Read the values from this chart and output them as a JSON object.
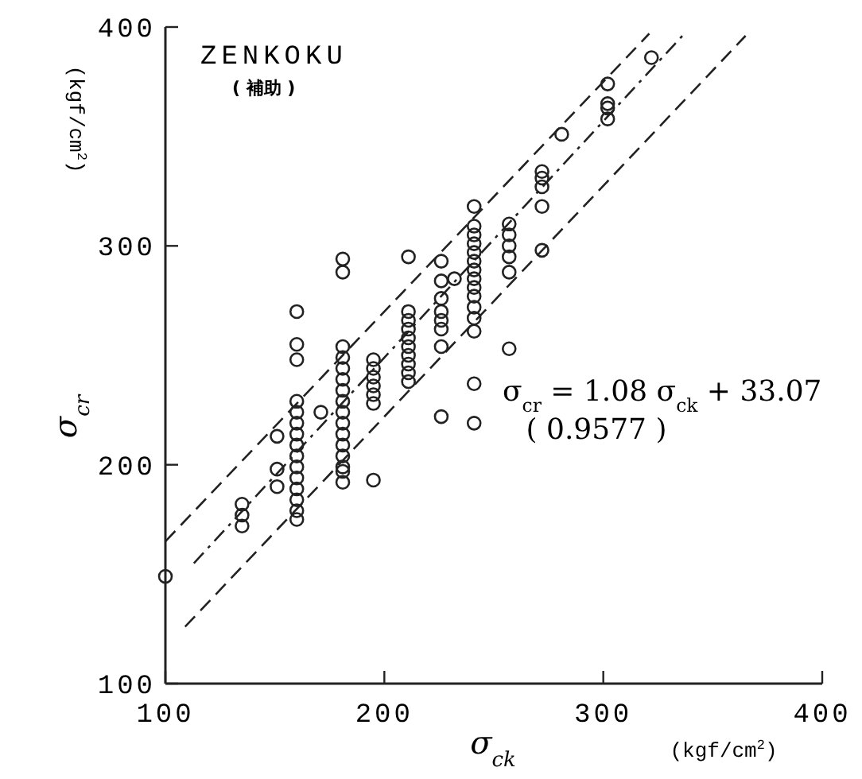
{
  "chart_data": {
    "type": "scatter",
    "title": "ZENKOKU",
    "subtitle": "( 補助 )",
    "xlabel": "σ$_{ck}$",
    "ylabel": "σ$_{cr}$",
    "annotations": [
      "σ$_{cr}$ = 1.08 σ$_{ck}$ + 33.07",
      "( 0.9577 )",
      "(kgf/cm$^{2}$)",
      "(kgf/cm$^{2}$)"
    ],
    "xlim": [
      100,
      400
    ],
    "ylim": [
      100,
      400
    ],
    "xticks": [
      100,
      200,
      300,
      400
    ],
    "yticks": [
      100,
      200,
      300,
      400
    ],
    "grid": false,
    "series": [
      {
        "color": "#222222",
        "marker": "circle",
        "x": [
          100,
          135,
          135,
          135,
          151,
          151,
          151,
          160,
          160,
          160,
          160,
          160,
          160,
          160,
          160,
          160,
          160,
          160,
          160,
          160,
          160,
          160,
          171,
          181,
          181,
          181,
          181,
          181,
          181,
          181,
          181,
          181,
          181,
          181,
          181,
          181,
          181,
          181,
          181,
          195,
          195,
          195,
          195,
          195,
          195,
          195,
          211,
          211,
          211,
          211,
          211,
          211,
          211,
          211,
          211,
          211,
          226,
          226,
          226,
          226,
          226,
          226,
          226,
          226,
          232,
          241,
          241,
          241,
          241,
          241,
          241,
          241,
          241,
          241,
          241,
          241,
          241,
          241,
          241,
          241,
          257,
          257,
          257,
          257,
          257,
          257,
          272,
          272,
          272,
          272,
          272,
          281,
          302,
          302,
          302,
          302,
          322
        ],
        "values": [
          149,
          182,
          177,
          172,
          213,
          198,
          190,
          270,
          255,
          248,
          229,
          224,
          219,
          214,
          209,
          204,
          199,
          194,
          189,
          184,
          179,
          175,
          224,
          294,
          288,
          254,
          249,
          244,
          239,
          234,
          229,
          224,
          219,
          214,
          209,
          204,
          199,
          197,
          192,
          248,
          244,
          240,
          236,
          232,
          228,
          193,
          295,
          270,
          266,
          262,
          258,
          254,
          250,
          246,
          242,
          238,
          293,
          284,
          276,
          270,
          266,
          262,
          254,
          222,
          285,
          318,
          309,
          305,
          301,
          297,
          293,
          289,
          285,
          281,
          277,
          272,
          267,
          261,
          237,
          219,
          310,
          305,
          300,
          295,
          288,
          253,
          334,
          331,
          327,
          318,
          298,
          351,
          374,
          365,
          363,
          358,
          386
        ]
      },
      {
        "type": "line",
        "color": "#222222",
        "line_style": "dashed",
        "marker": "none",
        "x": [
          100,
          321
        ],
        "values": [
          165,
          397
        ]
      },
      {
        "type": "line",
        "color": "#222222",
        "line_style": "dotted",
        "marker": "none",
        "x": [
          113,
          338
        ],
        "values": [
          155,
          398
        ]
      },
      {
        "type": "line",
        "color": "#222222",
        "line_style": "dashed",
        "marker": "none",
        "x": [
          109,
          365
        ],
        "values": [
          126,
          396
        ]
      }
    ]
  }
}
